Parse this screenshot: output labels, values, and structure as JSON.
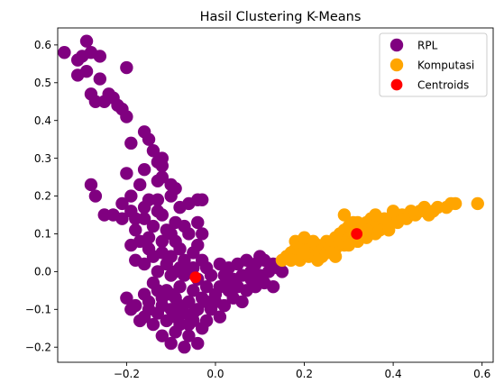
{
  "chart_data": {
    "type": "scatter",
    "title": "Hasil Clustering K-Means",
    "xlabel": "",
    "ylabel": "",
    "xlim": [
      -0.355,
      0.625
    ],
    "ylim": [
      -0.24,
      0.645
    ],
    "xticks": [
      -0.2,
      0.0,
      0.2,
      0.4,
      0.6
    ],
    "xtick_labels": [
      "−0.2",
      "0.0",
      "0.2",
      "0.4",
      "0.6"
    ],
    "yticks": [
      -0.2,
      -0.1,
      0.0,
      0.1,
      0.2,
      0.3,
      0.4,
      0.5,
      0.6
    ],
    "ytick_labels": [
      "−0.2",
      "−0.1",
      "0.0",
      "0.1",
      "0.2",
      "0.3",
      "0.4",
      "0.5",
      "0.6"
    ],
    "grid": false,
    "legend_position": "top-right",
    "series": [
      {
        "name": "RPL",
        "color": "#800080",
        "points": [
          [
            -0.34,
            0.58
          ],
          [
            -0.31,
            0.56
          ],
          [
            -0.3,
            0.57
          ],
          [
            -0.29,
            0.61
          ],
          [
            -0.28,
            0.58
          ],
          [
            -0.26,
            0.57
          ],
          [
            -0.2,
            0.54
          ],
          [
            -0.29,
            0.53
          ],
          [
            -0.31,
            0.52
          ],
          [
            -0.26,
            0.51
          ],
          [
            -0.28,
            0.47
          ],
          [
            -0.24,
            0.47
          ],
          [
            -0.23,
            0.46
          ],
          [
            -0.25,
            0.45
          ],
          [
            -0.27,
            0.45
          ],
          [
            -0.22,
            0.44
          ],
          [
            -0.21,
            0.43
          ],
          [
            -0.2,
            0.41
          ],
          [
            -0.16,
            0.37
          ],
          [
            -0.15,
            0.35
          ],
          [
            -0.19,
            0.34
          ],
          [
            -0.14,
            0.32
          ],
          [
            -0.12,
            0.3
          ],
          [
            -0.13,
            0.29
          ],
          [
            -0.12,
            0.28
          ],
          [
            -0.16,
            0.27
          ],
          [
            -0.2,
            0.26
          ],
          [
            -0.12,
            0.25
          ],
          [
            -0.13,
            0.24
          ],
          [
            -0.17,
            0.23
          ],
          [
            -0.28,
            0.23
          ],
          [
            -0.1,
            0.23
          ],
          [
            -0.09,
            0.22
          ],
          [
            -0.19,
            0.2
          ],
          [
            -0.27,
            0.2
          ],
          [
            -0.1,
            0.2
          ],
          [
            -0.03,
            0.19
          ],
          [
            -0.15,
            0.19
          ],
          [
            -0.06,
            0.18
          ],
          [
            -0.21,
            0.18
          ],
          [
            -0.16,
            0.17
          ],
          [
            -0.13,
            0.16
          ],
          [
            -0.19,
            0.16
          ],
          [
            -0.25,
            0.15
          ],
          [
            -0.23,
            0.15
          ],
          [
            -0.21,
            0.14
          ],
          [
            -0.18,
            0.14
          ],
          [
            -0.16,
            0.14
          ],
          [
            -0.12,
            0.15
          ],
          [
            -0.09,
            0.13
          ],
          [
            -0.07,
            0.12
          ],
          [
            -0.04,
            0.13
          ],
          [
            -0.14,
            0.12
          ],
          [
            -0.18,
            0.11
          ],
          [
            -0.1,
            0.1
          ],
          [
            -0.06,
            0.1
          ],
          [
            -0.03,
            0.1
          ],
          [
            -0.15,
            0.09
          ],
          [
            -0.12,
            0.08
          ],
          [
            -0.09,
            0.08
          ],
          [
            -0.19,
            0.07
          ],
          [
            -0.08,
            0.06
          ],
          [
            -0.05,
            0.05
          ],
          [
            -0.12,
            0.05
          ],
          [
            -0.14,
            0.04
          ],
          [
            -0.1,
            0.04
          ],
          [
            -0.07,
            0.03
          ],
          [
            -0.03,
            0.03
          ],
          [
            -0.18,
            0.03
          ],
          [
            -0.16,
            0.02
          ],
          [
            -0.11,
            0.02
          ],
          [
            -0.08,
            0.01
          ],
          [
            -0.05,
            0.01
          ],
          [
            -0.02,
            0.01
          ],
          [
            0.01,
            0.02
          ],
          [
            0.03,
            0.01
          ],
          [
            0.05,
            0.02
          ],
          [
            0.07,
            0.03
          ],
          [
            0.09,
            0.02
          ],
          [
            0.11,
            0.03
          ],
          [
            0.13,
            0.02
          ],
          [
            0.1,
            0.04
          ],
          [
            0.14,
            0.01
          ],
          [
            -0.13,
            0.0
          ],
          [
            -0.1,
            -0.01
          ],
          [
            -0.07,
            -0.01
          ],
          [
            -0.04,
            -0.02
          ],
          [
            -0.01,
            -0.01
          ],
          [
            0.02,
            -0.01
          ],
          [
            0.04,
            -0.02
          ],
          [
            0.06,
            -0.01
          ],
          [
            0.08,
            0.0
          ],
          [
            0.1,
            -0.01
          ],
          [
            0.12,
            0.0
          ],
          [
            0.15,
            0.0
          ],
          [
            0.11,
            -0.03
          ],
          [
            0.09,
            -0.04
          ],
          [
            0.07,
            -0.05
          ],
          [
            0.05,
            -0.04
          ],
          [
            0.03,
            -0.05
          ],
          [
            0.01,
            -0.04
          ],
          [
            -0.02,
            -0.04
          ],
          [
            -0.05,
            -0.05
          ],
          [
            -0.08,
            -0.04
          ],
          [
            -0.11,
            -0.05
          ],
          [
            -0.14,
            -0.03
          ],
          [
            -0.16,
            -0.06
          ],
          [
            -0.2,
            -0.07
          ],
          [
            -0.18,
            -0.09
          ],
          [
            -0.15,
            -0.08
          ],
          [
            -0.12,
            -0.07
          ],
          [
            -0.09,
            -0.07
          ],
          [
            -0.06,
            -0.08
          ],
          [
            -0.03,
            -0.07
          ],
          [
            0.0,
            -0.08
          ],
          [
            0.02,
            -0.09
          ],
          [
            0.04,
            -0.07
          ],
          [
            0.06,
            -0.08
          ],
          [
            -0.01,
            -0.1
          ],
          [
            -0.04,
            -0.1
          ],
          [
            -0.07,
            -0.11
          ],
          [
            -0.1,
            -0.1
          ],
          [
            -0.13,
            -0.11
          ],
          [
            -0.16,
            -0.12
          ],
          [
            -0.19,
            -0.1
          ],
          [
            -0.14,
            -0.14
          ],
          [
            -0.11,
            -0.13
          ],
          [
            -0.08,
            -0.14
          ],
          [
            -0.05,
            -0.13
          ],
          [
            -0.02,
            -0.13
          ],
          [
            0.01,
            -0.12
          ],
          [
            -0.12,
            -0.17
          ],
          [
            -0.09,
            -0.16
          ],
          [
            -0.06,
            -0.17
          ],
          [
            -0.03,
            -0.15
          ],
          [
            -0.1,
            -0.19
          ],
          [
            -0.07,
            -0.2
          ],
          [
            -0.04,
            -0.19
          ],
          [
            -0.12,
            -0.09
          ],
          [
            -0.09,
            -0.12
          ],
          [
            -0.06,
            -0.14
          ],
          [
            -0.15,
            -0.1
          ],
          [
            -0.17,
            -0.13
          ],
          [
            -0.08,
            -0.09
          ],
          [
            -0.05,
            -0.11
          ],
          [
            -0.02,
            -0.08
          ],
          [
            0.0,
            -0.06
          ],
          [
            -0.1,
            -0.06
          ],
          [
            -0.13,
            -0.05
          ],
          [
            -0.06,
            0.0
          ],
          [
            -0.09,
            0.0
          ],
          [
            -0.15,
            0.06
          ],
          [
            -0.11,
            0.11
          ],
          [
            -0.08,
            0.17
          ],
          [
            -0.17,
            0.08
          ],
          [
            -0.04,
            0.07
          ],
          [
            -0.13,
            0.19
          ],
          [
            0.03,
            -0.03
          ],
          [
            0.08,
            -0.02
          ],
          [
            0.13,
            -0.04
          ],
          [
            -0.04,
            0.19
          ]
        ]
      },
      {
        "name": "Komputasi",
        "color": "#ffa500",
        "points": [
          [
            0.15,
            0.03
          ],
          [
            0.16,
            0.04
          ],
          [
            0.17,
            0.05
          ],
          [
            0.18,
            0.06
          ],
          [
            0.18,
            0.08
          ],
          [
            0.19,
            0.05
          ],
          [
            0.19,
            0.03
          ],
          [
            0.2,
            0.07
          ],
          [
            0.2,
            0.09
          ],
          [
            0.21,
            0.04
          ],
          [
            0.21,
            0.06
          ],
          [
            0.22,
            0.05
          ],
          [
            0.23,
            0.07
          ],
          [
            0.24,
            0.06
          ],
          [
            0.25,
            0.08
          ],
          [
            0.25,
            0.05
          ],
          [
            0.26,
            0.07
          ],
          [
            0.27,
            0.06
          ],
          [
            0.27,
            0.09
          ],
          [
            0.28,
            0.08
          ],
          [
            0.28,
            0.1
          ],
          [
            0.29,
            0.07
          ],
          [
            0.29,
            0.11
          ],
          [
            0.29,
            0.15
          ],
          [
            0.3,
            0.12
          ],
          [
            0.3,
            0.09
          ],
          [
            0.31,
            0.1
          ],
          [
            0.31,
            0.13
          ],
          [
            0.32,
            0.08
          ],
          [
            0.32,
            0.11
          ],
          [
            0.33,
            0.12
          ],
          [
            0.33,
            0.1
          ],
          [
            0.34,
            0.09
          ],
          [
            0.34,
            0.13
          ],
          [
            0.35,
            0.11
          ],
          [
            0.35,
            0.14
          ],
          [
            0.36,
            0.12
          ],
          [
            0.36,
            0.1
          ],
          [
            0.37,
            0.13
          ],
          [
            0.37,
            0.11
          ],
          [
            0.38,
            0.12
          ],
          [
            0.38,
            0.14
          ],
          [
            0.39,
            0.13
          ],
          [
            0.4,
            0.14
          ],
          [
            0.41,
            0.13
          ],
          [
            0.42,
            0.15
          ],
          [
            0.43,
            0.14
          ],
          [
            0.44,
            0.16
          ],
          [
            0.45,
            0.15
          ],
          [
            0.46,
            0.16
          ],
          [
            0.47,
            0.17
          ],
          [
            0.48,
            0.15
          ],
          [
            0.49,
            0.16
          ],
          [
            0.5,
            0.17
          ],
          [
            0.52,
            0.17
          ],
          [
            0.53,
            0.18
          ],
          [
            0.54,
            0.18
          ],
          [
            0.59,
            0.18
          ],
          [
            0.22,
            0.08
          ],
          [
            0.24,
            0.04
          ],
          [
            0.26,
            0.05
          ],
          [
            0.17,
            0.03
          ],
          [
            0.2,
            0.05
          ],
          [
            0.3,
            0.07
          ],
          [
            0.34,
            0.11
          ],
          [
            0.36,
            0.15
          ],
          [
            0.39,
            0.11
          ],
          [
            0.4,
            0.16
          ],
          [
            0.23,
            0.03
          ],
          [
            0.27,
            0.04
          ],
          [
            0.32,
            0.13
          ]
        ]
      },
      {
        "name": "Centroids",
        "color": "#ff0000",
        "points": [
          [
            -0.045,
            -0.015
          ],
          [
            0.318,
            0.1
          ]
        ]
      }
    ]
  }
}
